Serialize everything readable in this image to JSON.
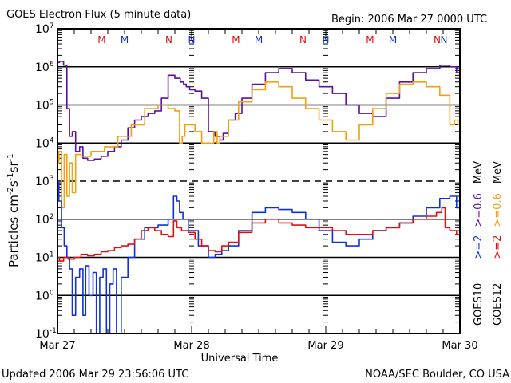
{
  "chart_data": {
    "type": "line",
    "title": "GOES Electron Flux (5 minute data)",
    "begin_label": "Begin: 2006 Mar 27 0000 UTC",
    "xlabel": "Universal Time",
    "ylabel": "Particles cm-2 s-1 sr-1",
    "ylabel_parts": {
      "base": "Particles cm",
      "e1": "-2",
      "s": "s",
      "e2": "-1",
      "sr": "sr",
      "e3": "-1"
    },
    "y_scale": "log",
    "ylim": [
      0.1,
      10000000
    ],
    "yticks": [
      {
        "base": "10",
        "exp": "7"
      },
      {
        "base": "10",
        "exp": "6"
      },
      {
        "base": "10",
        "exp": "5"
      },
      {
        "base": "10",
        "exp": "4"
      },
      {
        "base": "10",
        "exp": "3"
      },
      {
        "base": "10",
        "exp": "2"
      },
      {
        "base": "10",
        "exp": "1"
      },
      {
        "base": "10",
        "exp": "0"
      },
      {
        "base": "10",
        "exp": "-1"
      }
    ],
    "xlim_days": [
      0,
      3
    ],
    "xticks": [
      "Mar 27",
      "Mar 28",
      "Mar 29",
      "Mar 30"
    ],
    "grid": "horizontal at decades (10^3 dashed)",
    "top_markers": [
      {
        "label": "M",
        "day": 0.33,
        "color": "#e01010"
      },
      {
        "label": "M",
        "day": 0.5,
        "color": "#1030e0"
      },
      {
        "label": "N",
        "day": 0.83,
        "color": "#e01010"
      },
      {
        "label": "N",
        "day": 1.0,
        "color": "#1030e0"
      },
      {
        "label": "M",
        "day": 1.33,
        "color": "#e01010"
      },
      {
        "label": "M",
        "day": 1.5,
        "color": "#1030e0"
      },
      {
        "label": "N",
        "day": 1.83,
        "color": "#e01010"
      },
      {
        "label": "N",
        "day": 2.0,
        "color": "#1030e0"
      },
      {
        "label": "M",
        "day": 2.33,
        "color": "#e01010"
      },
      {
        "label": "M",
        "day": 2.5,
        "color": "#1030e0"
      },
      {
        "label": "N",
        "day": 2.83,
        "color": "#e01010"
      },
      {
        "label": "N",
        "day": 3.0,
        "color": "#1030e0"
      }
    ],
    "legend": {
      "placement": "right, vertical",
      "columns": [
        {
          "satellite": "GOES10",
          "entries": [
            {
              "label": ">=2",
              "color": "#1030e0"
            },
            {
              "label": ">=0.6",
              "color": "#5a10a0"
            }
          ],
          "unit": "MeV"
        },
        {
          "satellite": "GOES12",
          "entries": [
            {
              "label": ">=2",
              "color": "#e01010"
            },
            {
              "label": ">=0.6",
              "color": "#f0a010"
            }
          ],
          "unit": "MeV"
        }
      ]
    },
    "series": [
      {
        "name": "GOES10 >=0.6 MeV",
        "color": "#5a10a0",
        "x_days": [
          0,
          0.03,
          0.06,
          0.08,
          0.1,
          0.12,
          0.15,
          0.18,
          0.2,
          0.25,
          0.3,
          0.35,
          0.4,
          0.45,
          0.5,
          0.55,
          0.6,
          0.65,
          0.7,
          0.75,
          0.8,
          0.85,
          0.9,
          0.93,
          0.95,
          0.97,
          1.0,
          1.05,
          1.1,
          1.15,
          1.2,
          1.22,
          1.25,
          1.3,
          1.35,
          1.4,
          1.5,
          1.6,
          1.7,
          1.8,
          1.9,
          2.0,
          2.1,
          2.2,
          2.3,
          2.4,
          2.5,
          2.6,
          2.7,
          2.8,
          2.9,
          2.95,
          3.0
        ],
        "values": [
          1300000,
          1400000,
          1100000,
          80000,
          15000,
          20000,
          6000,
          8000,
          4000,
          3500,
          3800,
          4500,
          6000,
          8000,
          12000,
          25000,
          40000,
          50000,
          60000,
          70000,
          150000,
          600000,
          500000,
          400000,
          350000,
          300000,
          250000,
          230000,
          150000,
          20000,
          15000,
          12000,
          18000,
          40000,
          60000,
          150000,
          350000,
          700000,
          900000,
          700000,
          450000,
          300000,
          200000,
          100000,
          60000,
          50000,
          150000,
          400000,
          700000,
          900000,
          1100000,
          1000000,
          700000
        ]
      },
      {
        "name": "GOES12 >=0.6 MeV",
        "color": "#f0a010",
        "x_days": [
          0,
          0.02,
          0.04,
          0.06,
          0.08,
          0.1,
          0.12,
          0.15,
          0.2,
          0.3,
          0.4,
          0.5,
          0.6,
          0.7,
          0.8,
          0.85,
          0.9,
          0.92,
          0.94,
          0.96,
          1.0,
          1.05,
          1.1,
          1.15,
          1.18,
          1.2,
          1.22,
          1.25,
          1.3,
          1.4,
          1.5,
          1.6,
          1.7,
          1.8,
          1.9,
          2.0,
          2.1,
          2.2,
          2.3,
          2.4,
          2.5,
          2.6,
          2.7,
          2.8,
          2.9,
          2.95,
          2.97,
          3.0
        ],
        "values": [
          3000,
          6000,
          200,
          5000,
          400,
          3000,
          500,
          5000,
          4500,
          6000,
          8000,
          15000,
          30000,
          80000,
          100000,
          80000,
          70000,
          10000,
          15000,
          30000,
          30000,
          20000,
          10000,
          10000,
          20000,
          10000,
          15000,
          15000,
          40000,
          120000,
          250000,
          400000,
          300000,
          150000,
          80000,
          40000,
          20000,
          12000,
          30000,
          80000,
          200000,
          350000,
          400000,
          300000,
          180000,
          30000,
          40000,
          30000
        ]
      },
      {
        "name": "GOES10 >=2 MeV",
        "color": "#1030e0",
        "x_days": [
          0,
          0.02,
          0.04,
          0.06,
          0.08,
          0.1,
          0.12,
          0.15,
          0.18,
          0.2,
          0.22,
          0.25,
          0.28,
          0.3,
          0.33,
          0.35,
          0.38,
          0.4,
          0.43,
          0.45,
          0.5,
          0.55,
          0.6,
          0.7,
          0.8,
          0.85,
          0.88,
          0.9,
          0.92,
          0.95,
          1.0,
          1.1,
          1.15,
          1.2,
          1.25,
          1.3,
          1.4,
          1.5,
          1.6,
          1.7,
          1.8,
          1.9,
          2.0,
          2.1,
          2.2,
          2.3,
          2.4,
          2.5,
          2.6,
          2.7,
          2.8,
          2.9,
          2.95,
          3.0
        ],
        "values": [
          1000,
          300,
          60,
          20,
          10,
          5,
          0.3,
          3,
          5,
          0.3,
          6,
          1,
          4,
          0.1,
          3,
          5,
          0.1,
          2,
          5,
          0.1,
          3,
          10,
          30,
          60,
          70,
          100,
          400,
          300,
          150,
          100,
          50,
          20,
          10,
          12,
          15,
          20,
          50,
          150,
          200,
          180,
          150,
          100,
          50,
          25,
          20,
          30,
          50,
          60,
          80,
          120,
          200,
          350,
          400,
          200
        ]
      },
      {
        "name": "GOES12 >=2 MeV",
        "color": "#e01010",
        "x_days": [
          0,
          0.03,
          0.06,
          0.1,
          0.15,
          0.2,
          0.25,
          0.3,
          0.35,
          0.4,
          0.45,
          0.5,
          0.55,
          0.6,
          0.65,
          0.7,
          0.75,
          0.8,
          0.85,
          0.88,
          0.9,
          0.95,
          1.0,
          1.05,
          1.1,
          1.15,
          1.2,
          1.25,
          1.3,
          1.4,
          1.5,
          1.6,
          1.7,
          1.8,
          1.9,
          2.0,
          2.1,
          2.2,
          2.3,
          2.4,
          2.5,
          2.6,
          2.7,
          2.8,
          2.85,
          2.88,
          2.9,
          2.95,
          3.0
        ],
        "values": [
          10,
          8,
          10,
          9,
          10,
          12,
          11,
          12,
          14,
          15,
          18,
          20,
          22,
          30,
          50,
          60,
          50,
          40,
          35,
          90,
          60,
          50,
          45,
          30,
          20,
          15,
          14,
          20,
          25,
          45,
          80,
          100,
          80,
          70,
          60,
          60,
          50,
          40,
          40,
          50,
          60,
          80,
          100,
          120,
          150,
          200,
          60,
          50,
          40
        ]
      }
    ]
  },
  "footer": {
    "updated": "Updated 2006 Mar 29 23:56:06 UTC",
    "credit": "NOAA/SEC Boulder, CO USA"
  }
}
